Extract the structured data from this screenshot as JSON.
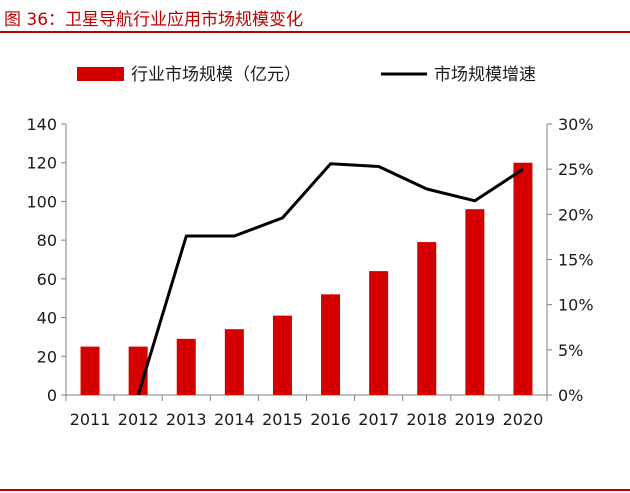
{
  "title": "图 36：卫星导航行业应用市场规模变化",
  "colors": {
    "title": "#c00000",
    "bar": "#d40000",
    "line": "#000000",
    "rule": "#c00000"
  },
  "chart_data": {
    "type": "bar",
    "categories": [
      "2011",
      "2012",
      "2013",
      "2014",
      "2015",
      "2016",
      "2017",
      "2018",
      "2019",
      "2020"
    ],
    "series": [
      {
        "name": "行业市场规模（亿元）",
        "type": "bar",
        "axis": "left",
        "values": [
          25,
          25,
          29,
          34,
          41,
          52,
          64,
          79,
          96,
          120
        ]
      },
      {
        "name": "市场规模增速",
        "type": "line",
        "axis": "right",
        "values": [
          null,
          0,
          17.6,
          17.6,
          19.6,
          25.6,
          25.3,
          22.8,
          21.5,
          25.0
        ]
      }
    ],
    "y_left": {
      "lim": [
        0,
        140
      ],
      "ticks": [
        "0",
        "20",
        "40",
        "60",
        "80",
        "100",
        "120",
        "140"
      ]
    },
    "y_right": {
      "lim": [
        0,
        30
      ],
      "ticks": [
        "0%",
        "5%",
        "10%",
        "15%",
        "20%",
        "25%",
        "30%"
      ]
    },
    "legend_position": "top",
    "grid": false
  }
}
